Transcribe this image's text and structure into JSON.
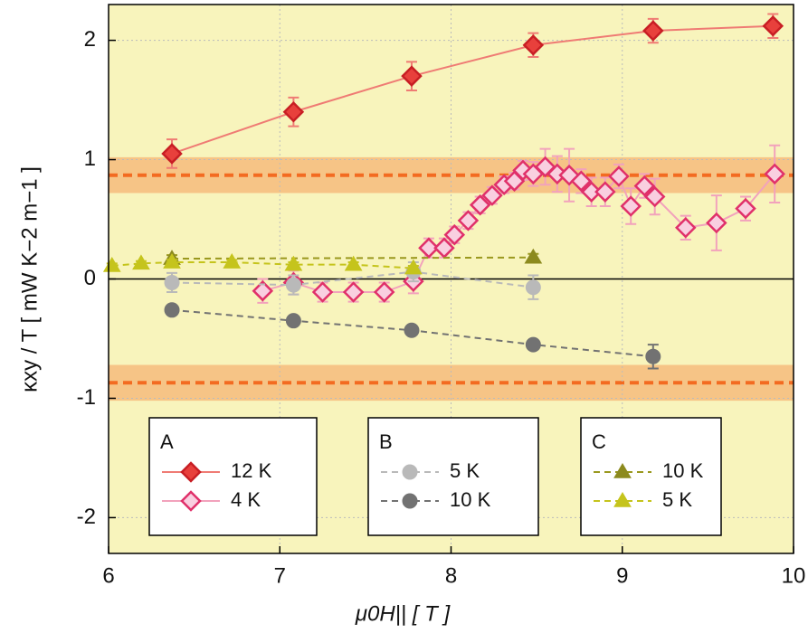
{
  "chart_data": {
    "type": "scatter",
    "x_label": "μ0H|| [ T ]",
    "y_label": "κxy / T [ mW K−2 m−1 ]",
    "xlim": [
      6,
      10
    ],
    "xticks": [
      6,
      7,
      8,
      9,
      10
    ],
    "ylim": [
      -2.3,
      2.3
    ],
    "yticks": [
      -2,
      -1,
      0,
      1,
      2
    ],
    "grid": true,
    "background": "#f8f4bc",
    "bands": [
      {
        "value": 0.87,
        "halfwidth": 0.15,
        "color": "#f36b21"
      },
      {
        "value": -0.87,
        "halfwidth": 0.15,
        "color": "#f36b21"
      }
    ],
    "series": [
      {
        "name": "12 K",
        "group": "A",
        "marker": "diamond",
        "filled": true,
        "color": "#e8403c",
        "line_color": "#ef7b74",
        "dashed": false,
        "x": [
          6.37,
          7.08,
          7.77,
          8.48,
          9.18,
          9.88
        ],
        "values": [
          1.05,
          1.4,
          1.7,
          1.96,
          2.08,
          2.12
        ],
        "errors": [
          0.12,
          0.12,
          0.12,
          0.1,
          0.1,
          0.1
        ]
      },
      {
        "name": "4 K",
        "group": "A",
        "marker": "diamond",
        "filled": false,
        "color": "#e0306a",
        "line_color": "#f2a2bc",
        "dashed": false,
        "x": [
          6.9,
          7.08,
          7.25,
          7.43,
          7.61,
          7.78,
          7.87,
          7.96,
          8.02,
          8.1,
          8.17,
          8.24,
          8.31,
          8.37,
          8.42,
          8.48,
          8.55,
          8.62,
          8.69,
          8.76,
          8.82,
          8.9,
          8.98,
          9.05,
          9.13,
          9.19,
          9.37,
          9.55,
          9.72,
          9.89
        ],
        "values": [
          -0.1,
          -0.03,
          -0.11,
          -0.11,
          -0.11,
          -0.02,
          0.26,
          0.26,
          0.37,
          0.49,
          0.62,
          0.7,
          0.79,
          0.82,
          0.91,
          0.88,
          0.94,
          0.88,
          0.87,
          0.82,
          0.73,
          0.73,
          0.86,
          0.61,
          0.78,
          0.69,
          0.43,
          0.47,
          0.59,
          0.88
        ],
        "errors": [
          0.1,
          0.1,
          0.08,
          0.08,
          0.08,
          0.1,
          0.08,
          0.08,
          0.07,
          0.07,
          0.07,
          0.07,
          0.07,
          0.07,
          0.08,
          0.1,
          0.15,
          0.15,
          0.22,
          0.1,
          0.12,
          0.12,
          0.1,
          0.15,
          0.1,
          0.15,
          0.1,
          0.23,
          0.1,
          0.24
        ]
      },
      {
        "name": "5 K",
        "group": "B",
        "marker": "circle",
        "filled": true,
        "color": "#b9b9b9",
        "line_color": "#b9b9b9",
        "dashed": true,
        "x": [
          6.37,
          7.08,
          7.78,
          8.48
        ],
        "values": [
          -0.03,
          -0.05,
          0.06,
          -0.07
        ],
        "errors": [
          0.08,
          0.08,
          0.08,
          0.1
        ]
      },
      {
        "name": "10 K",
        "group": "B",
        "marker": "circle",
        "filled": true,
        "color": "#727272",
        "line_color": "#727272",
        "dashed": true,
        "x": [
          6.37,
          7.08,
          7.77,
          8.48,
          9.18
        ],
        "values": [
          -0.26,
          -0.35,
          -0.43,
          -0.55,
          -0.65
        ],
        "errors": [
          0.03,
          0.03,
          0.03,
          0.03,
          0.1
        ]
      },
      {
        "name": "10 K",
        "group": "C",
        "marker": "triangle",
        "filled": true,
        "color": "#8c8a1e",
        "line_color": "#9a981e",
        "dashed": true,
        "x": [
          6.37,
          8.48
        ],
        "values": [
          0.17,
          0.18
        ],
        "errors": [
          0.03,
          0.03
        ]
      },
      {
        "name": "5 K",
        "group": "C",
        "marker": "triangle",
        "filled": true,
        "color": "#c5c41c",
        "line_color": "#c5c41c",
        "dashed": true,
        "x": [
          6.02,
          6.19,
          6.37,
          6.72,
          7.08,
          7.43,
          7.78
        ],
        "values": [
          0.11,
          0.13,
          0.14,
          0.14,
          0.12,
          0.12,
          0.09
        ],
        "errors": [
          0.02,
          0.02,
          0.02,
          0.02,
          0.02,
          0.02,
          0.02
        ]
      }
    ]
  }
}
